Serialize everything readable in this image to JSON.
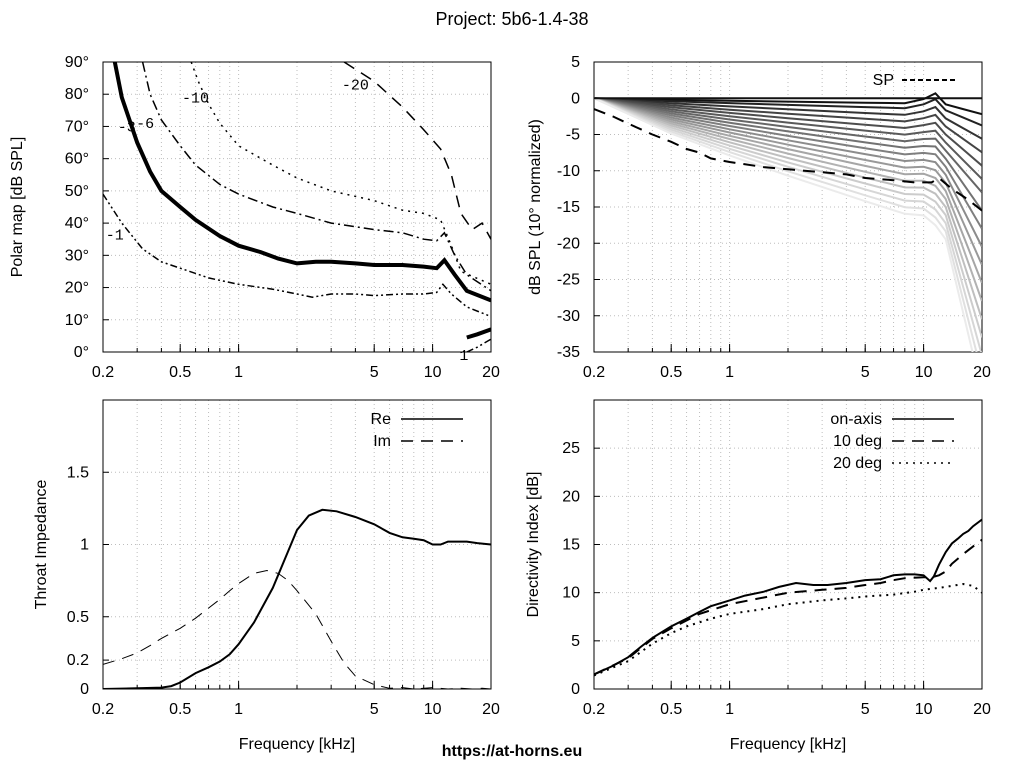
{
  "title": "Project: 5b6-1.4-38",
  "footer": "https://at-horns.eu",
  "chart_data": [
    {
      "id": "polar",
      "type": "contour",
      "xlabel": "",
      "ylabel": "Polar map [dB SPL]",
      "xscale": "log",
      "xlim": [
        0.2,
        20
      ],
      "ylim": [
        0,
        90
      ],
      "xticks": [
        0.2,
        0.5,
        1,
        5,
        10,
        20
      ],
      "xtick_labels": [
        "0.2",
        "0.5",
        "1",
        "5",
        "10",
        "20"
      ],
      "yticks": [
        0,
        10,
        20,
        30,
        40,
        50,
        60,
        70,
        80,
        90
      ],
      "ytick_labels": [
        "0°",
        "10°",
        "20°",
        "30°",
        "40°",
        "50°",
        "60°",
        "70°",
        "80°",
        "90°"
      ],
      "series": [
        {
          "name": "-1",
          "style": "dash-dot-dot",
          "x": [
            0.2,
            0.25,
            0.32,
            0.4,
            0.5,
            0.7,
            1.0,
            1.5,
            2.0,
            2.4,
            3.0,
            4.0,
            5.0,
            7.0,
            9.0,
            10.5,
            11.3,
            12.5,
            15,
            20
          ],
          "y": [
            49,
            40,
            32,
            28,
            26,
            23,
            21,
            19.5,
            18,
            17,
            18,
            18,
            17.5,
            18,
            18,
            18.5,
            21,
            18,
            14,
            11
          ]
        },
        {
          "name": "-1",
          "style": "dash-dot-dot",
          "x": [
            15,
            17,
            20
          ],
          "y": [
            0,
            1.5,
            4
          ]
        },
        {
          "name": "-3",
          "style": "thick",
          "x": [
            0.23,
            0.25,
            0.3,
            0.35,
            0.4,
            0.5,
            0.6,
            0.8,
            1.0,
            1.3,
            1.6,
            2.0,
            2.5,
            3.0,
            4.0,
            5.0,
            7.0,
            9.0,
            10.5,
            11.5,
            13,
            15,
            20
          ],
          "y": [
            90,
            79,
            65,
            56,
            50,
            45,
            41,
            36,
            33,
            31,
            29,
            27.5,
            28,
            28,
            27.5,
            27,
            27,
            26.5,
            26,
            28.5,
            24,
            19,
            16
          ]
        },
        {
          "name": "-1",
          "style": "thick",
          "x": [
            15,
            17,
            20
          ],
          "y": [
            4.5,
            5.5,
            7
          ]
        },
        {
          "name": "-6",
          "style": "dash-dot",
          "x": [
            0.32,
            0.35,
            0.4,
            0.5,
            0.6,
            0.8,
            1.0,
            1.5,
            2.0,
            3.0,
            5.0,
            7.0,
            9.0,
            10.5,
            11.5,
            13,
            15,
            20
          ],
          "y": [
            90,
            80,
            72,
            64,
            58,
            52,
            49,
            45,
            43,
            40,
            38,
            37,
            35,
            34.5,
            37,
            30,
            24,
            19
          ]
        },
        {
          "name": "-10",
          "style": "dotted",
          "x": [
            0.57,
            0.62,
            0.7,
            0.8,
            1.0,
            1.5,
            2.0,
            3.0,
            5.0,
            7.0,
            9.0,
            11.0,
            12.5,
            14,
            20
          ],
          "y": [
            90,
            84,
            77,
            71,
            64,
            58,
            54,
            50,
            47,
            44,
            43,
            41,
            33,
            25,
            21
          ]
        },
        {
          "name": "-20",
          "style": "dashed",
          "x": [
            3.5,
            5.0,
            7.0,
            9.0,
            11.0,
            12.5,
            14,
            16,
            18,
            20
          ],
          "y": [
            90,
            84,
            76,
            69,
            63,
            55,
            43,
            38,
            40,
            35
          ]
        }
      ],
      "labels": [
        {
          "text": "-3",
          "x": 0.265,
          "y": 70
        },
        {
          "text": "-6",
          "x": 0.33,
          "y": 71
        },
        {
          "text": "-10",
          "x": 0.6,
          "y": 79
        },
        {
          "text": "-20",
          "x": 4.0,
          "y": 83
        },
        {
          "text": "-1",
          "x": 0.23,
          "y": 36.5
        },
        {
          "text": "1",
          "x": 14.5,
          "y": -1
        }
      ]
    },
    {
      "id": "spl",
      "type": "line",
      "xlabel": "",
      "ylabel": "dB SPL (10° normalized)",
      "xscale": "log",
      "xlim": [
        0.2,
        20
      ],
      "ylim": [
        -35,
        5
      ],
      "xticks": [
        0.2,
        0.5,
        1,
        5,
        10,
        20
      ],
      "xtick_labels": [
        "0.2",
        "0.5",
        "1",
        "5",
        "10",
        "20"
      ],
      "yticks": [
        5,
        0,
        -5,
        -10,
        -15,
        -20,
        -25,
        -30,
        -35
      ],
      "legend": [
        "SP"
      ],
      "legend_position": "top-right",
      "sp_series": {
        "name": "SP",
        "x": [
          0.2,
          0.25,
          0.3,
          0.4,
          0.5,
          0.6,
          0.7,
          0.8,
          1.0,
          1.5,
          2.0,
          3.0,
          4.0,
          5.0,
          7.0,
          9.0,
          11.0,
          12.0,
          14,
          17,
          20
        ],
        "y": [
          -1.5,
          -2.5,
          -3.5,
          -5,
          -6,
          -7,
          -7.5,
          -8.3,
          -8.8,
          -9.5,
          -9.8,
          -10.2,
          -10.5,
          -11,
          -11.3,
          -11.6,
          -11.6,
          -11,
          -12.5,
          -14,
          -15.5
        ]
      },
      "polar_fan": {
        "count": 18,
        "x": [
          0.2,
          0.5,
          1,
          2,
          5,
          8,
          10,
          11.5,
          13,
          16,
          20
        ],
        "end_values": [
          -1.5,
          -3,
          -5,
          -7,
          -9,
          -11,
          -13,
          -15,
          -17,
          -19,
          -21,
          -23,
          -25,
          -27,
          -29,
          -31,
          -33,
          -35
        ],
        "hf_drop": [
          1,
          1.5,
          2,
          2.5,
          3,
          3.5,
          4,
          5,
          6,
          7,
          8,
          9,
          10,
          11,
          12,
          13,
          14,
          15
        ],
        "colors": [
          "#111111",
          "#222222",
          "#333333",
          "#444444",
          "#4d4d4d",
          "#5a5a5a",
          "#666666",
          "#727272",
          "#7f7f7f",
          "#8c8c8c",
          "#999999",
          "#a6a6a6",
          "#b2b2b2",
          "#bfbfbf",
          "#cccccc",
          "#d6d6d6",
          "#e0e0e0",
          "#ebebeb"
        ]
      }
    },
    {
      "id": "impedance",
      "type": "line",
      "xlabel": "Frequency [kHz]",
      "ylabel": "Throat Impedance",
      "xscale": "log",
      "xlim": [
        0.2,
        20
      ],
      "ylim": [
        0,
        2
      ],
      "xticks": [
        0.2,
        0.5,
        1,
        5,
        10,
        20
      ],
      "xtick_labels": [
        "0.2",
        "0.5",
        "1",
        "5",
        "10",
        "20"
      ],
      "yticks": [
        0,
        0.2,
        0.5,
        1,
        1.5
      ],
      "ytick_labels": [
        "0",
        "0.2",
        "0.5",
        "1",
        "1.5"
      ],
      "legend_position": "top-right",
      "series": [
        {
          "name": "Re",
          "style": "solid",
          "x": [
            0.2,
            0.3,
            0.4,
            0.45,
            0.5,
            0.6,
            0.7,
            0.8,
            0.9,
            1.0,
            1.2,
            1.5,
            2.0,
            2.3,
            2.7,
            3.2,
            4.0,
            5.0,
            6.0,
            7.0,
            8.0,
            9.0,
            10.0,
            11.0,
            12.0,
            13.0,
            15.0,
            17.0,
            20.0
          ],
          "y": [
            0,
            0.005,
            0.01,
            0.02,
            0.045,
            0.11,
            0.15,
            0.19,
            0.24,
            0.31,
            0.46,
            0.7,
            1.1,
            1.2,
            1.24,
            1.23,
            1.19,
            1.14,
            1.08,
            1.05,
            1.04,
            1.03,
            1.0,
            1.0,
            1.02,
            1.02,
            1.02,
            1.01,
            1.0
          ]
        },
        {
          "name": "Im",
          "style": "dashed",
          "x": [
            0.2,
            0.25,
            0.3,
            0.35,
            0.4,
            0.5,
            0.6,
            0.7,
            0.8,
            0.9,
            1.0,
            1.2,
            1.4,
            1.6,
            1.8,
            2.0,
            2.5,
            3.0,
            3.5,
            4.0,
            5.0,
            6.0,
            7.0,
            8.0,
            10,
            12,
            14,
            16,
            18,
            20
          ],
          "y": [
            0.17,
            0.21,
            0.25,
            0.3,
            0.35,
            0.42,
            0.49,
            0.56,
            0.62,
            0.68,
            0.73,
            0.8,
            0.82,
            0.8,
            0.75,
            0.68,
            0.52,
            0.33,
            0.18,
            0.09,
            0.03,
            0.005,
            0.01,
            0,
            0.01,
            0,
            0.005,
            0,
            0.005,
            0
          ]
        }
      ]
    },
    {
      "id": "di",
      "type": "line",
      "xlabel": "Frequency [kHz]",
      "ylabel": "Directivity Index [dB]",
      "xscale": "log",
      "xlim": [
        0.2,
        20
      ],
      "ylim": [
        0,
        30
      ],
      "xticks": [
        0.2,
        0.5,
        1,
        5,
        10,
        20
      ],
      "xtick_labels": [
        "0.2",
        "0.5",
        "1",
        "5",
        "10",
        "20"
      ],
      "yticks": [
        0,
        5,
        10,
        15,
        20,
        25
      ],
      "legend_position": "top-right",
      "series": [
        {
          "name": "on-axis",
          "style": "solid",
          "x": [
            0.2,
            0.25,
            0.3,
            0.35,
            0.4,
            0.5,
            0.6,
            0.7,
            0.8,
            1.0,
            1.2,
            1.5,
            1.8,
            2.2,
            2.7,
            3.2,
            4.0,
            5.0,
            6.0,
            7.0,
            8.0,
            9.0,
            10.0,
            10.8,
            11.3,
            12.0,
            13.0,
            14,
            15,
            16,
            17,
            18,
            20
          ],
          "y": [
            1.5,
            2.4,
            3.3,
            4.4,
            5.3,
            6.5,
            7.3,
            8.0,
            8.6,
            9.2,
            9.7,
            10.1,
            10.6,
            11.0,
            10.8,
            10.8,
            11.0,
            11.3,
            11.4,
            11.8,
            11.9,
            11.9,
            11.8,
            11.2,
            11.7,
            12.9,
            14.2,
            15.1,
            15.6,
            16.1,
            16.4,
            16.9,
            17.6
          ]
        },
        {
          "name": "10 deg",
          "style": "dashed",
          "x": [
            0.2,
            0.3,
            0.4,
            0.5,
            0.7,
            1.0,
            1.5,
            2.0,
            3.0,
            4.0,
            5.0,
            6.0,
            7.0,
            8.0,
            10.0,
            11.0,
            12.0,
            13.0,
            14,
            16,
            18,
            20
          ],
          "y": [
            1.5,
            3.2,
            5.2,
            6.3,
            7.8,
            8.8,
            9.5,
            10.0,
            10.3,
            10.5,
            10.8,
            11.0,
            11.3,
            11.5,
            11.6,
            11.6,
            11.8,
            12.2,
            13.0,
            14.0,
            14.8,
            15.5
          ]
        },
        {
          "name": "20 deg",
          "style": "dotted",
          "x": [
            0.2,
            0.3,
            0.4,
            0.5,
            0.6,
            0.8,
            1.0,
            1.5,
            2.0,
            3.0,
            4.0,
            5.0,
            7.0,
            9.0,
            10.0,
            12.0,
            14.0,
            16.0,
            18.0,
            20.0
          ],
          "y": [
            1.4,
            2.9,
            4.7,
            5.8,
            6.5,
            7.3,
            7.8,
            8.3,
            8.8,
            9.2,
            9.4,
            9.6,
            9.8,
            10.1,
            10.3,
            10.5,
            10.7,
            10.9,
            10.7,
            10.0
          ]
        }
      ]
    }
  ]
}
